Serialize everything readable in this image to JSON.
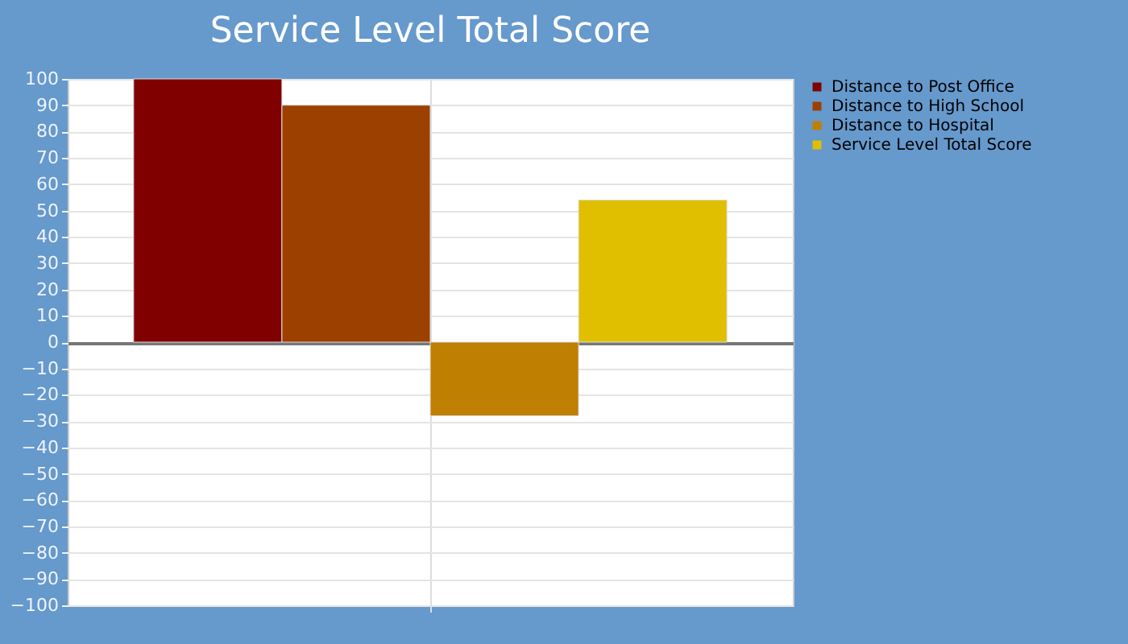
{
  "chart_data": {
    "type": "bar",
    "title": "Service Level Total Score",
    "categories": [
      null
    ],
    "series": [
      {
        "name": "Distance to Post Office",
        "color": "#800000",
        "values": [
          100
        ]
      },
      {
        "name": "Distance to High School",
        "color": "#9c4000",
        "values": [
          90
        ]
      },
      {
        "name": "Distance to Hospital",
        "color": "#bf7f00",
        "values": [
          -28
        ]
      },
      {
        "name": "Service Level Total Score",
        "color": "#e0bf00",
        "values": [
          54
        ]
      }
    ],
    "ylim": [
      -100,
      100
    ],
    "yticks": [
      -100,
      -90,
      -80,
      -70,
      -60,
      -50,
      -40,
      -30,
      -20,
      -10,
      0,
      10,
      20,
      30,
      40,
      50,
      60,
      70,
      80,
      90,
      100
    ],
    "grid": true,
    "legend": "top right"
  }
}
